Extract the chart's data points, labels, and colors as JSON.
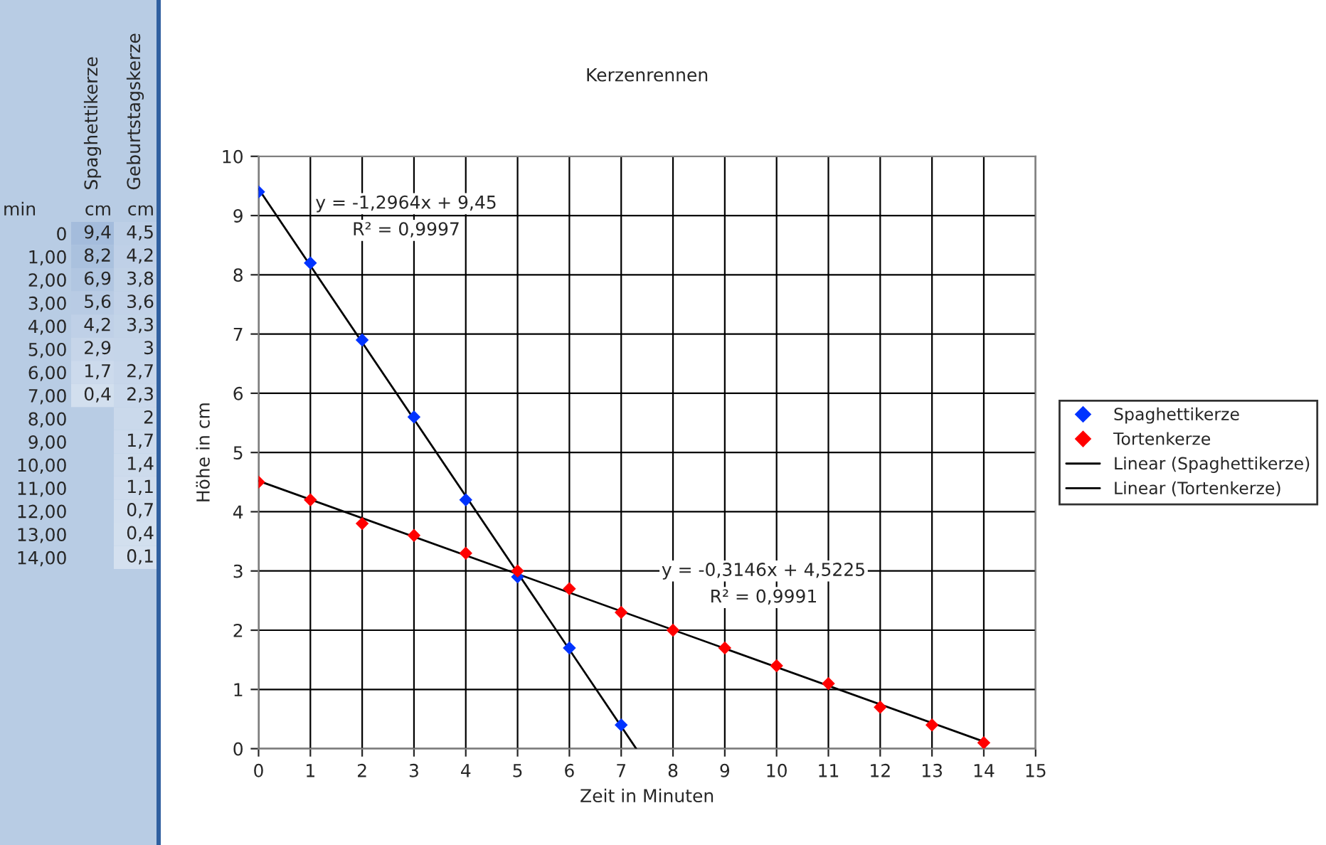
{
  "chart_data": [
    {
      "type": "heatmap",
      "categories": [
        "Spaghettikerze",
        "Geburtstagskerze"
      ],
      "y_categories": [
        "0",
        "1,00",
        "2,00",
        "3,00",
        "4,00",
        "5,00",
        "6,00",
        "7,00",
        "8,00",
        "9,00",
        "10,00",
        "11,00",
        "12,00",
        "13,00",
        "14,00"
      ],
      "annotations": [
        "min",
        "cm",
        "cm"
      ],
      "cells": [
        [
          9.4,
          4.5
        ],
        [
          8.2,
          4.2
        ],
        [
          6.9,
          3.8
        ],
        [
          5.6,
          3.6
        ],
        [
          4.2,
          3.3
        ],
        [
          2.9,
          3
        ],
        [
          1.7,
          2.7
        ],
        [
          0.4,
          2.3
        ],
        [
          null,
          2
        ],
        [
          null,
          1.7
        ],
        [
          null,
          1.4
        ],
        [
          null,
          1.1
        ],
        [
          null,
          0.7
        ],
        [
          null,
          0.4
        ],
        [
          null,
          0.1
        ]
      ],
      "cell_labels": [
        [
          "9,4",
          "4,5"
        ],
        [
          "8,2",
          "4,2"
        ],
        [
          "6,9",
          "3,8"
        ],
        [
          "5,6",
          "3,6"
        ],
        [
          "4,2",
          "3,3"
        ],
        [
          "2,9",
          "3"
        ],
        [
          "1,7",
          "2,7"
        ],
        [
          "0,4",
          "2,3"
        ],
        [
          null,
          "2"
        ],
        [
          null,
          "1,7"
        ],
        [
          null,
          "1,4"
        ],
        [
          null,
          "1,1"
        ],
        [
          null,
          "0,7"
        ],
        [
          null,
          "0,4"
        ],
        [
          null,
          "0,1"
        ]
      ]
    },
    {
      "type": "scatter",
      "title": "Kerzenrennen",
      "xlabel": "Zeit in Minuten",
      "ylabel": "Höhe in cm",
      "xlim": [
        0,
        15
      ],
      "xticks": [
        0,
        1,
        2,
        3,
        4,
        5,
        6,
        7,
        8,
        9,
        10,
        11,
        12,
        13,
        14,
        15
      ],
      "ylim": [
        0,
        10
      ],
      "yticks": [
        0,
        1,
        2,
        3,
        4,
        5,
        6,
        7,
        8,
        9,
        10
      ],
      "grid": true,
      "legend": "right",
      "marker": "diamond",
      "series": [
        {
          "name": "Spaghettikerze",
          "color": "#0033ff",
          "x": [
            0,
            1,
            2,
            3,
            4,
            5,
            6,
            7
          ],
          "values": [
            9.4,
            8.2,
            6.9,
            5.6,
            4.2,
            2.9,
            1.7,
            0.4
          ]
        },
        {
          "name": "Tortenkerze",
          "color": "#ff0000",
          "x": [
            0,
            1,
            2,
            3,
            4,
            5,
            6,
            7,
            8,
            9,
            10,
            11,
            12,
            13,
            14
          ],
          "values": [
            4.5,
            4.2,
            3.8,
            3.6,
            3.3,
            3,
            2.7,
            2.3,
            2,
            1.7,
            1.4,
            1.1,
            0.7,
            0.4,
            0.1
          ]
        },
        {
          "name": "Linear (Spaghettikerze)",
          "type": "line",
          "marker": "none",
          "color": "#000000",
          "x": [
            0,
            7.29
          ],
          "values": [
            9.45,
            0
          ]
        },
        {
          "name": "Linear (Tortenkerze)",
          "type": "line",
          "marker": "none",
          "color": "#000000",
          "x": [
            0,
            14
          ],
          "values": [
            4.52,
            0.12
          ]
        }
      ],
      "annotations": [
        "y = -1,2964x + 9,45",
        "R² = 0,9997",
        "y = -0,3146x + 4,5225",
        "R² = 0,9991"
      ]
    }
  ]
}
